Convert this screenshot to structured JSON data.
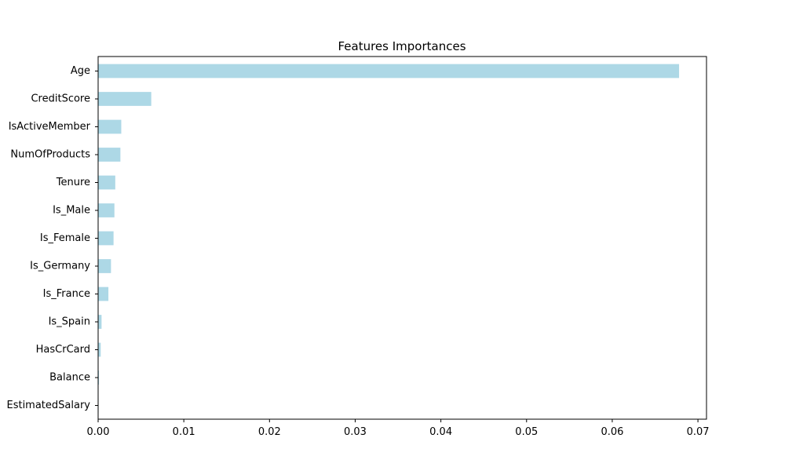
{
  "chart_data": {
    "type": "bar",
    "orientation": "horizontal",
    "title": "Features Importances",
    "xlabel": "",
    "ylabel": "",
    "categories": [
      "Age",
      "CreditScore",
      "IsActiveMember",
      "NumOfProducts",
      "Tenure",
      "Is_Male",
      "Is_Female",
      "Is_Germany",
      "Is_France",
      "Is_Spain",
      "HasCrCard",
      "Balance",
      "EstimatedSalary"
    ],
    "values": [
      0.0678,
      0.0062,
      0.0027,
      0.0026,
      0.002,
      0.0019,
      0.0018,
      0.0015,
      0.0012,
      0.0004,
      0.0003,
      0.0001,
      5e-05
    ],
    "xlim": [
      0.0,
      0.071
    ],
    "xticks": [
      "0.00",
      "0.01",
      "0.02",
      "0.03",
      "0.04",
      "0.05",
      "0.06",
      "0.07"
    ],
    "xtick_values": [
      0.0,
      0.01,
      0.02,
      0.03,
      0.04,
      0.05,
      0.06,
      0.07
    ],
    "bar_color": "#add8e6",
    "grid": false,
    "legend": "none"
  }
}
